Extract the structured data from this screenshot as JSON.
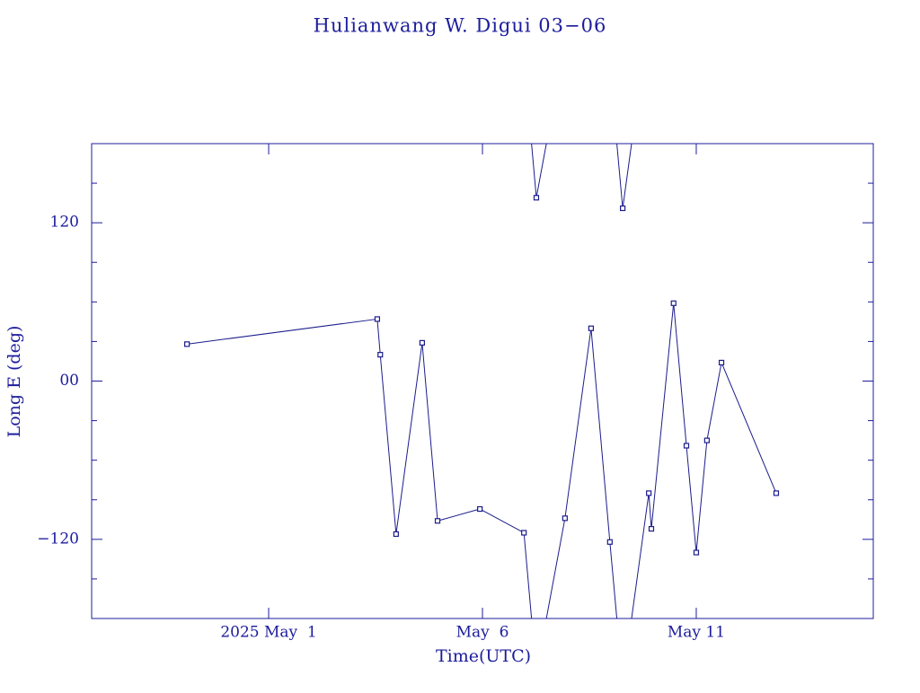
{
  "chart_data": {
    "type": "line",
    "title": "Hulianwang W. Digui 03−06",
    "xlabel": "Time(UTC)",
    "ylabel": "Long E (deg)",
    "x": [
      -1.91,
      2.54,
      2.61,
      2.98,
      3.59,
      3.95,
      4.94,
      5.97,
      6.26,
      6.93,
      7.54,
      7.98,
      8.28,
      8.89,
      8.95,
      9.47,
      9.77,
      10.0,
      10.25,
      10.59,
      11.87
    ],
    "series": [
      {
        "name": "Hulianwang W. Digui 03−06",
        "color": "#1c1c8c",
        "values": [
          28,
          47,
          20,
          -116,
          29,
          -106,
          -97,
          -115,
          139,
          -104,
          40,
          -122,
          131,
          -85,
          -112,
          59,
          -49,
          -130,
          -45,
          14,
          -85
        ]
      }
    ],
    "xlim": [
      -4.14,
      14.14
    ],
    "xticks": [
      {
        "value": 0,
        "label": "2025 May  1"
      },
      {
        "value": 5,
        "label": "May  6"
      },
      {
        "value": 10,
        "label": "May 11"
      }
    ],
    "ylim": [
      -180,
      180
    ],
    "yticks": [
      {
        "value": -120,
        "label": "−120"
      },
      {
        "value": 0,
        "label": "00"
      },
      {
        "value": 120,
        "label": "120"
      }
    ],
    "yminorticks": [
      -150,
      -90,
      -60,
      -30,
      30,
      60,
      90,
      150
    ],
    "wrap": 360
  }
}
